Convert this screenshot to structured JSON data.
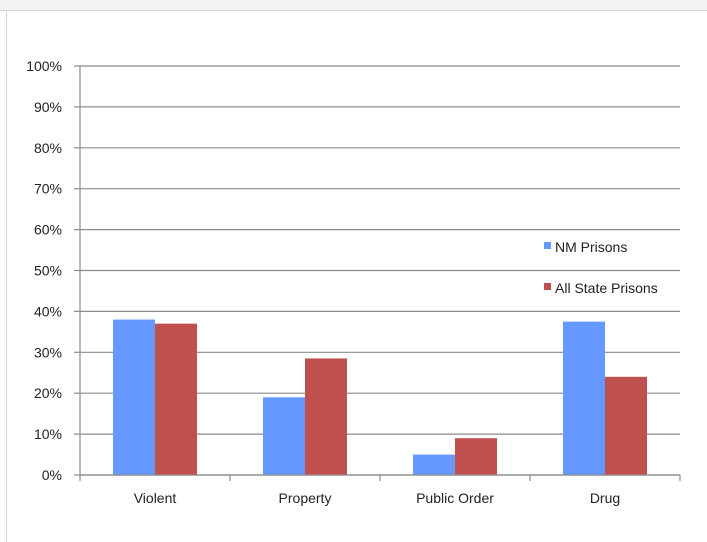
{
  "chart_data": {
    "type": "bar",
    "categories": [
      "Violent",
      "Property",
      "Public Order",
      "Drug"
    ],
    "series": [
      {
        "name": "NM Prisons",
        "values": [
          38,
          19,
          5,
          37.5
        ]
      },
      {
        "name": "All State Prisons",
        "values": [
          37,
          28.5,
          9,
          24
        ]
      }
    ],
    "y_ticks": [
      "0%",
      "10%",
      "20%",
      "30%",
      "40%",
      "50%",
      "60%",
      "70%",
      "80%",
      "90%",
      "100%"
    ],
    "ylim": [
      0,
      100
    ],
    "y_unit": "%",
    "grid": true,
    "legend_position": "right",
    "colors": {
      "series_0": "#6699ff",
      "series_1": "#c0504d",
      "grid": "#8c8c8c",
      "axis": "#8c8c8c"
    }
  }
}
